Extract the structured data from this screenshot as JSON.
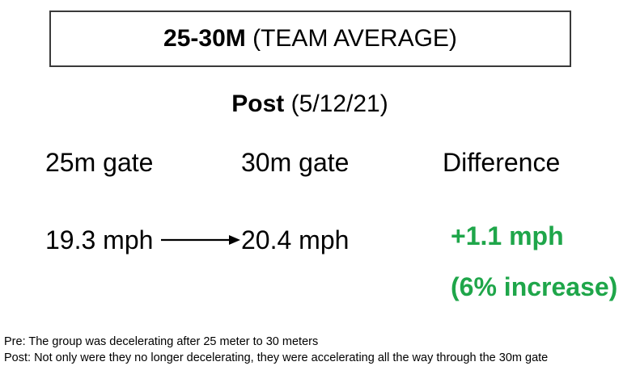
{
  "title": {
    "bold_text": "25-30M",
    "normal_text": "(TEAM AVERAGE)"
  },
  "subtitle": {
    "bold_text": "Post",
    "normal_text": "(5/12/21)"
  },
  "columns": {
    "gate_25_label": "25m gate",
    "gate_30_label": "30m gate",
    "difference_label": "Difference"
  },
  "values": {
    "gate_25_speed": "19.3 mph",
    "gate_30_speed": "20.4 mph",
    "difference": "+1.1 mph",
    "percent_change": "(6% increase)"
  },
  "notes": {
    "pre": "Pre:  The group was decelerating after 25 meter to 30 meters",
    "post": "Post: Not only were they no longer decelerating, they were accelerating all the way through the 30m gate"
  },
  "colors": {
    "highlight": "#1fa64a",
    "border": "#3a3a3a"
  },
  "icons": {
    "arrow": "arrow-right-icon"
  }
}
